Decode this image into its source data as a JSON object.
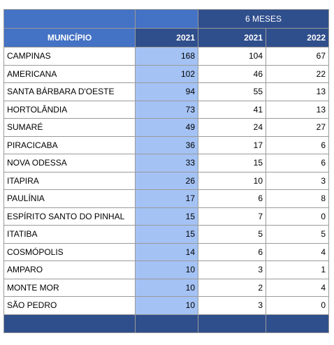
{
  "table": {
    "group_header": "6 MESES",
    "columns": [
      "MUNICÍPIO",
      "2021",
      "2021",
      "2022"
    ],
    "rows": [
      [
        "CAMPINAS",
        168,
        104,
        67
      ],
      [
        "AMERICANA",
        102,
        46,
        22
      ],
      [
        "SANTA BÁRBARA D'OESTE",
        94,
        55,
        13
      ],
      [
        "HORTOLÂNDIA",
        73,
        41,
        13
      ],
      [
        "SUMARÉ",
        49,
        24,
        27
      ],
      [
        "PIRACICABA",
        36,
        17,
        6
      ],
      [
        "NOVA ODESSA",
        33,
        15,
        6
      ],
      [
        "ITAPIRA",
        26,
        10,
        3
      ],
      [
        "PAULÍNIA",
        17,
        6,
        8
      ],
      [
        "ESPÍRITO SANTO DO PINHAL",
        15,
        7,
        0
      ],
      [
        "ITATIBA",
        15,
        5,
        5
      ],
      [
        "COSMÓPOLIS",
        14,
        6,
        4
      ],
      [
        "AMPARO",
        10,
        3,
        1
      ],
      [
        "MONTE MOR",
        10,
        2,
        4
      ],
      [
        "SÃO PEDRO",
        10,
        3,
        0
      ]
    ]
  }
}
